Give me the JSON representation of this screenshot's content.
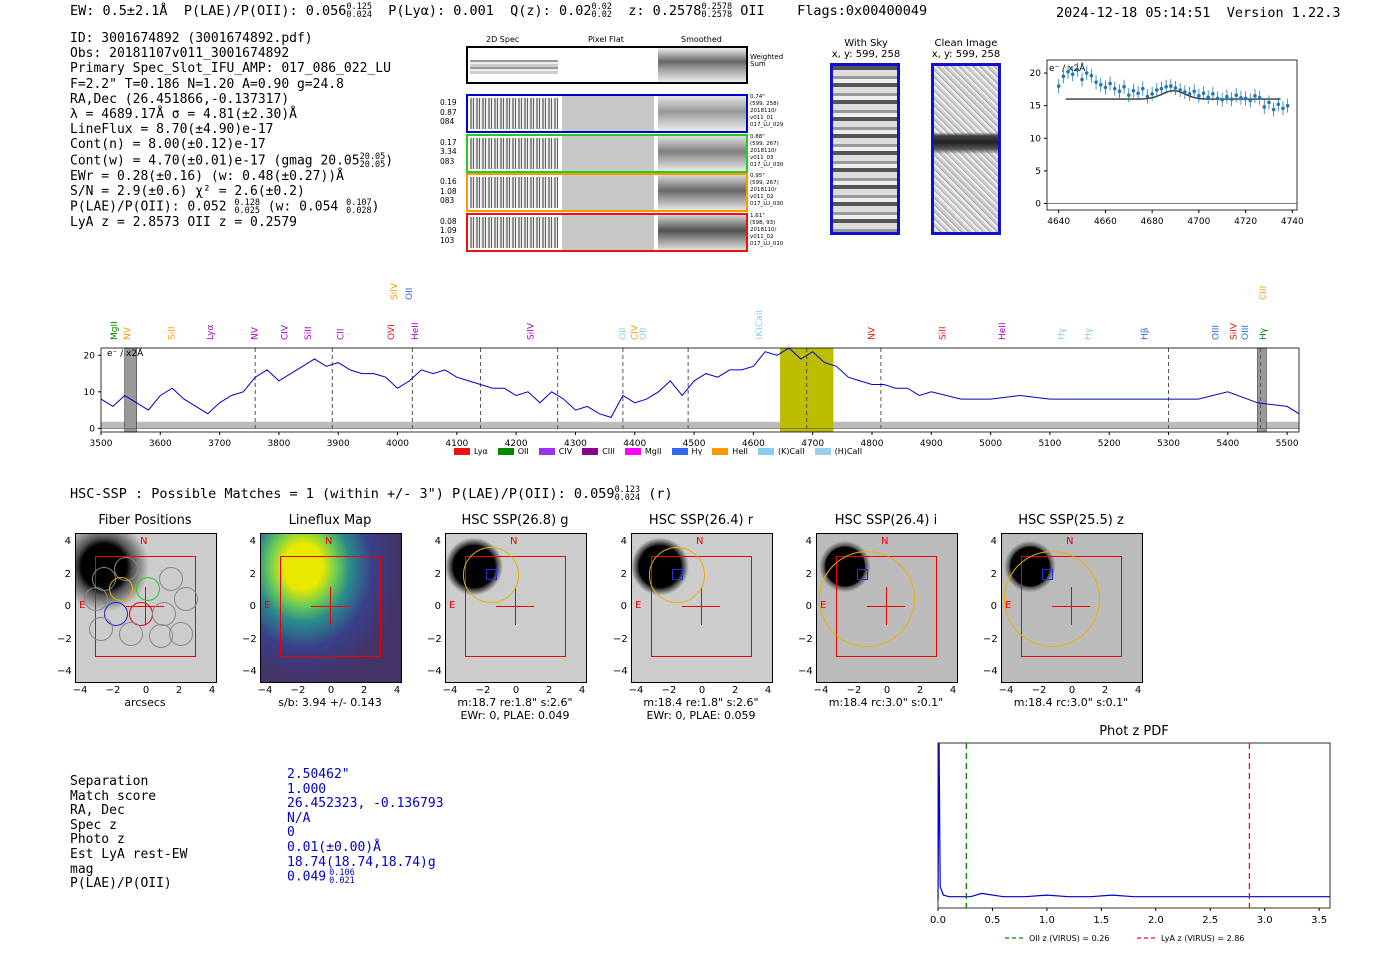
{
  "header": {
    "ew": "EW: 0.5±2.1Å",
    "plae_label": "P(LAE)/P(OII): 0.056",
    "plae_hi": "0.125",
    "plae_lo": "0.024",
    "plya": "P(Lyα): 0.001",
    "qz": "Q(z): 0.02",
    "qz_hi": "0.02",
    "qz_lo": "0.02",
    "z": "z: 0.2578",
    "z_hi": "0.2578",
    "z_lo": "0.2578",
    "z_line": "OII",
    "flags": "Flags:0x00400049",
    "datetime": "2024-12-18 05:14:51",
    "version": "Version 1.22.3"
  },
  "info": {
    "l1": "ID: 3001674892 (3001674892.pdf)",
    "l2": "Obs: 20181107v011_3001674892",
    "l3": "Primary Spec_Slot_IFU_AMP: 017_086_022_LU",
    "l4": "F=2.2\"  T=0.186  N=1.20  A=0.90  g=24.8",
    "l5": "RA,Dec (26.451866,-0.137317)",
    "l6": "λ = 4689.17Å  σ = 4.81(±2.30)Å",
    "l7": "LineFlux = 8.70(±4.90)e-17",
    "l8": "Cont(n) = 8.00(±0.12)e-17",
    "l9": "Cont(w) = 4.70(±0.01)e-17 (gmag 20.05",
    "l9_hi": "20.05",
    "l9_lo": "20.05",
    "l9_end": ")",
    "l10": "EWr = 0.28(±0.16) (w: 0.48(±0.27))Å",
    "l11": "S/N = 2.9(±0.6)  χ² = 2.6(±0.2)",
    "l12a": "P(LAE)/P(OII): 0.052",
    "l12_hi1": "0.128",
    "l12_lo1": "0.025",
    "l12b": "(w: 0.054",
    "l12_hi2": "0.107",
    "l12_lo2": "0.028",
    "l12_end": ")",
    "l13": "LyA z = 2.8573  OII z = 0.2579"
  },
  "cutouts": {
    "col1": "2D Spec",
    "col2": "Pixel Flat",
    "col3": "Smoothed",
    "sum_label": "Weighted Sum",
    "rows": [
      {
        "left": [
          "0.19",
          "0.87",
          "084"
        ],
        "right": [
          "0.74\"",
          "(599, 258)",
          "2018110/",
          "v011_01",
          "017_LU_029"
        ],
        "color": "#0000cc"
      },
      {
        "left": [
          "0.17",
          "3.34",
          "083"
        ],
        "right": [
          "0.88\"",
          "(599, 267)",
          "2018110/",
          "v011_03",
          "017_LU_030"
        ],
        "color": "#22cc22"
      },
      {
        "left": [
          "0.16",
          "1.08",
          "083"
        ],
        "right": [
          "0.95\"",
          "(599, 267)",
          "2018110/",
          "v011_02",
          "017_LU_030"
        ],
        "color": "#ff9900"
      },
      {
        "left": [
          "0.08",
          "1.09",
          "103"
        ],
        "right": [
          "1.61\"",
          "(598, 93)",
          "2018110/",
          "v011_02",
          "017_LU_010"
        ],
        "color": "#ee1111"
      }
    ],
    "with_sky_title": "With Sky",
    "with_sky_coords": "x, y: 599, 258",
    "clean_title": "Clean Image",
    "clean_coords": "x, y: 599, 258"
  },
  "zoom_chart": {
    "unit_label": "e⁻ / x2Å",
    "xticks": [
      "4640",
      "4660",
      "4680",
      "4700",
      "4720",
      "4740"
    ],
    "yticks": [
      "0",
      "5",
      "10",
      "15",
      "20"
    ]
  },
  "chart_data": [
    {
      "type": "scatter",
      "title": "Zoomed line fit",
      "xlabel": "",
      "ylabel": "e⁻ / x2Å",
      "xlim": [
        4635,
        4742
      ],
      "ylim": [
        -1,
        22
      ],
      "x": [
        4640,
        4642,
        4644,
        4646,
        4648,
        4650,
        4652,
        4654,
        4656,
        4658,
        4660,
        4662,
        4664,
        4666,
        4668,
        4670,
        4672,
        4674,
        4676,
        4678,
        4680,
        4682,
        4684,
        4686,
        4688,
        4690,
        4692,
        4694,
        4696,
        4698,
        4700,
        4702,
        4704,
        4706,
        4708,
        4710,
        4712,
        4714,
        4716,
        4718,
        4720,
        4722,
        4724,
        4726,
        4728,
        4730,
        4732,
        4734,
        4736,
        4738
      ],
      "y": [
        18.0,
        19.5,
        20.2,
        19.8,
        20.5,
        19.0,
        20.0,
        19.6,
        18.6,
        18.2,
        17.8,
        18.4,
        17.6,
        17.2,
        17.9,
        16.6,
        17.3,
        16.9,
        17.6,
        16.4,
        16.8,
        17.4,
        17.6,
        17.9,
        18.0,
        17.7,
        17.4,
        17.1,
        16.8,
        17.2,
        16.5,
        16.9,
        16.3,
        16.8,
        16.1,
        15.9,
        16.4,
        16.0,
        16.6,
        16.2,
        16.1,
        15.8,
        16.5,
        16.2,
        14.8,
        15.5,
        14.4,
        15.2,
        14.6,
        15.0
      ],
      "fit": {
        "continuum": 16.0,
        "center": 4689.17,
        "sigma": 4.81,
        "amplitude": 1.3,
        "range": [
          4643,
          4735
        ]
      }
    },
    {
      "type": "line",
      "title": "Full spectrum",
      "xlabel": "",
      "ylabel": "e⁻ / x2Å",
      "xlim": [
        3500,
        5520
      ],
      "ylim": [
        -1,
        22
      ],
      "xticks": [
        3500,
        3600,
        3700,
        3800,
        3900,
        4000,
        4100,
        4200,
        4300,
        4400,
        4500,
        4600,
        4700,
        4800,
        4900,
        5000,
        5100,
        5200,
        5300,
        5400,
        5500
      ],
      "yticks": [
        0,
        10,
        20
      ],
      "series": [
        {
          "name": "spectrum",
          "color": "#0000cc",
          "x": [
            3500,
            3520,
            3540,
            3560,
            3580,
            3600,
            3620,
            3640,
            3660,
            3680,
            3700,
            3720,
            3740,
            3760,
            3780,
            3800,
            3820,
            3840,
            3860,
            3880,
            3900,
            3920,
            3940,
            3960,
            3980,
            4000,
            4020,
            4040,
            4060,
            4080,
            4100,
            4120,
            4140,
            4160,
            4180,
            4200,
            4220,
            4240,
            4260,
            4280,
            4300,
            4320,
            4340,
            4360,
            4380,
            4400,
            4420,
            4440,
            4460,
            4480,
            4500,
            4520,
            4540,
            4560,
            4580,
            4600,
            4620,
            4640,
            4660,
            4680,
            4700,
            4720,
            4740,
            4760,
            4780,
            4800,
            4820,
            4840,
            4860,
            4880,
            4900,
            4950,
            5000,
            5050,
            5100,
            5150,
            5200,
            5250,
            5300,
            5350,
            5400,
            5450,
            5500,
            5520
          ],
          "y": [
            8,
            6,
            9,
            7,
            5,
            9,
            11,
            8,
            6,
            4,
            7,
            9,
            10,
            14,
            16,
            13,
            15,
            17,
            19,
            17,
            18,
            16,
            15,
            15,
            14,
            11,
            13,
            16,
            15,
            16,
            14,
            13,
            12,
            11,
            11,
            9,
            10,
            7,
            10,
            8,
            5,
            6,
            4,
            3,
            9,
            7,
            8,
            10,
            13,
            9,
            13,
            15,
            14,
            16,
            16,
            17,
            21,
            20,
            22,
            19,
            21,
            18,
            17,
            14,
            13,
            12,
            12,
            11,
            11,
            9,
            10,
            8,
            8,
            9,
            8,
            8,
            8,
            8,
            8,
            8,
            10,
            7,
            6,
            4
          ]
        }
      ],
      "highlight_band": [
        4645,
        4735
      ],
      "grey_bands": [
        [
          3540,
          3560
        ],
        [
          5450,
          5465
        ]
      ],
      "dashed_lines": [
        3760,
        3890,
        4025,
        4140,
        4270,
        4380,
        4490,
        4690,
        4815,
        5300,
        5455
      ],
      "line_marks": [
        {
          "label": "MgII",
          "x": 3523,
          "color": "#008800"
        },
        {
          "label": "NV",
          "x": 3545,
          "color": "#ff9900"
        },
        {
          "label": "SiII",
          "x": 3620,
          "color": "#ff9900"
        },
        {
          "label": "Lyα",
          "x": 3685,
          "color": "#aa00cc"
        },
        {
          "label": "NV",
          "x": 3760,
          "color": "#aa00cc"
        },
        {
          "label": "CIV",
          "x": 3810,
          "color": "#aa00cc"
        },
        {
          "label": "SiII",
          "x": 3850,
          "color": "#aa00cc"
        },
        {
          "label": "CII",
          "x": 3905,
          "color": "#aa00cc"
        },
        {
          "label": "OVI",
          "x": 3990,
          "color": "#ee1111"
        },
        {
          "label": "HeII",
          "x": 4030,
          "color": "#aa00cc"
        },
        {
          "label": "SiIV",
          "x": 4225,
          "color": "#aa00cc"
        },
        {
          "label": "OII",
          "x": 4380,
          "color": "#88ccee"
        },
        {
          "label": "CIV",
          "x": 4400,
          "color": "#ff9900"
        },
        {
          "label": "OII",
          "x": 4415,
          "color": "#88ccee"
        },
        {
          "label": "(K)CaII",
          "x": 4610,
          "color": "#88ccee"
        },
        {
          "label": "NV",
          "x": 4800,
          "color": "#ee1111"
        },
        {
          "label": "SiII",
          "x": 4920,
          "color": "#ee1111"
        },
        {
          "label": "HeII",
          "x": 5020,
          "color": "#aa00cc"
        },
        {
          "label": "Hγ",
          "x": 5120,
          "color": "#88ccee"
        },
        {
          "label": "Hγ",
          "x": 5165,
          "color": "#88ccee"
        },
        {
          "label": "Hβ",
          "x": 5260,
          "color": "#3366ee"
        },
        {
          "label": "OIII",
          "x": 5380,
          "color": "#3366ee"
        },
        {
          "label": "SiIV",
          "x": 5410,
          "color": "#ee1111"
        },
        {
          "label": "OIII",
          "x": 5430,
          "color": "#3366ee"
        },
        {
          "label": "Hγ",
          "x": 5460,
          "color": "#008800"
        }
      ],
      "upper_marks": [
        {
          "label": "SiIV",
          "x": 3995,
          "color": "#ff9900"
        },
        {
          "label": "OII",
          "x": 4020,
          "color": "#3366ee"
        },
        {
          "label": "CIII",
          "x": 5460,
          "color": "#ff9900"
        }
      ],
      "legend": [
        {
          "label": "Lyα",
          "color": "#ee1111"
        },
        {
          "label": "OII",
          "color": "#008800"
        },
        {
          "label": "CIV",
          "color": "#9933ee"
        },
        {
          "label": "CIII",
          "color": "#880088"
        },
        {
          "label": "MgII",
          "color": "#ff00ff"
        },
        {
          "label": "Hγ",
          "color": "#3366ee"
        },
        {
          "label": "HeII",
          "color": "#ff9900"
        },
        {
          "label": "(K)CaII",
          "color": "#88ccee"
        },
        {
          "label": "(H)CaII",
          "color": "#99ccee"
        }
      ]
    },
    {
      "type": "line",
      "title": "Phot z PDF",
      "xlabel": "",
      "ylabel": "",
      "xlim": [
        0.0,
        3.6
      ],
      "ylim": [
        0,
        1
      ],
      "xticks": [
        "0.0",
        "0.5",
        "1.0",
        "1.5",
        "2.0",
        "2.5",
        "3.0",
        "3.5"
      ],
      "vlines": [
        {
          "label": "OII z (VIRUS) = 0.26",
          "x": 0.26,
          "color": "#008800"
        },
        {
          "label": "LyA z (VIRUS) = 2.86",
          "x": 2.86,
          "color": "#ee1111"
        }
      ],
      "series": [
        {
          "name": "pdf",
          "color": "#0000cc",
          "x": [
            0.0,
            0.01,
            0.02,
            0.05,
            0.1,
            0.2,
            0.3,
            0.4,
            0.6,
            0.8,
            1.0,
            1.2,
            1.4,
            1.6,
            1.8,
            2.0,
            2.2,
            2.4,
            2.6,
            2.8,
            3.0,
            3.2,
            3.4,
            3.6
          ],
          "y": [
            0.0,
            0.95,
            0.08,
            0.03,
            0.02,
            0.02,
            0.02,
            0.04,
            0.02,
            0.02,
            0.03,
            0.02,
            0.02,
            0.03,
            0.02,
            0.02,
            0.02,
            0.02,
            0.02,
            0.02,
            0.02,
            0.02,
            0.02,
            0.02
          ]
        }
      ]
    }
  ],
  "hsc": {
    "summary": "HSC-SSP : Possible Matches = 1 (within +/- 3\")  P(LAE)/P(OII): 0.059",
    "summary_hi": "0.123",
    "summary_lo": "0.024",
    "summary_band": "(r)",
    "axis_ticks_y": [
      "4",
      "2",
      "0",
      "−2",
      "−4"
    ],
    "axis_ticks_x": [
      "−4",
      "−2",
      "0",
      "2",
      "4"
    ],
    "north": "N",
    "east": "E",
    "panels": [
      {
        "title": "Fiber Positions",
        "caption1": "arcsecs",
        "caption2": ""
      },
      {
        "title": "Lineflux Map",
        "caption1": "s/b: 3.94 +/- 0.143",
        "caption2": ""
      },
      {
        "title": "HSC SSP(26.8) g",
        "caption1": "m:18.7  re:1.8\"  s:2.6\"",
        "caption2": "EWr: 0, PLAE: 0.049"
      },
      {
        "title": "HSC SSP(26.4) r",
        "caption1": "m:18.4  re:1.8\"  s:2.6\"",
        "caption2": "EWr: 0, PLAE: 0.059"
      },
      {
        "title": "HSC SSP(26.4) i",
        "caption1": "m:18.4 rc:3.0\"  s:0.1\"",
        "caption2": ""
      },
      {
        "title": "HSC SSP(25.5) z",
        "caption1": "m:18.4 rc:3.0\"  s:0.1\"",
        "caption2": ""
      }
    ]
  },
  "match": {
    "labels": [
      "Separation",
      "Match score",
      "RA, Dec",
      "Spec z",
      "Photo z",
      "Est LyA rest-EW",
      "mag",
      "P(LAE)/P(OII)"
    ],
    "values": [
      "2.50462\"",
      "1.000",
      "26.452323, -0.136793",
      "N/A",
      "0",
      "0.01(±0.00)Å",
      "18.74(18.74,18.74)g",
      "0.049"
    ],
    "plae_hi": "0.106",
    "plae_lo": "0.021"
  }
}
